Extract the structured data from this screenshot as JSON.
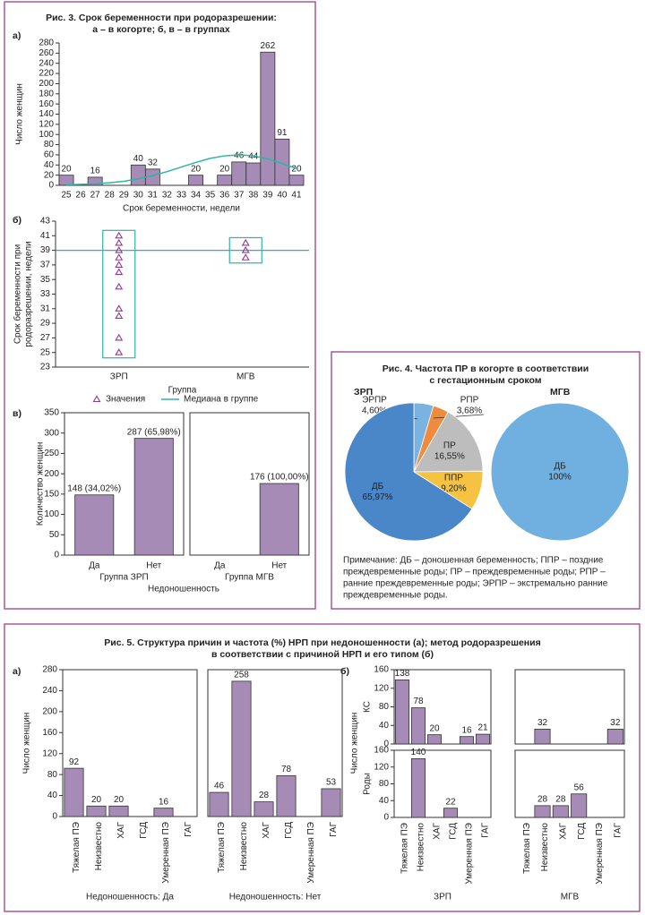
{
  "figures": [
    {
      "title": [
        "Рис. 3. Срок беременности при родоразрешении:",
        "а – в когорте; б, в – в группах"
      ],
      "panels": [
        "а)",
        "б)",
        "в)"
      ],
      "xlabel": "Недоношенность"
    },
    {
      "title": [
        "Рис. 4. Частота ПР в когорте в соответствии",
        "с гестационным сроком"
      ],
      "note": [
        "Примечание: ДБ – доношенная беременность; ППР – поздние",
        "преждевременные роды; ПР – преждевременные роды; РПР –",
        "ранние преждевременные роды; ЭРПР – экстремально ранние",
        "преждевременные роды."
      ]
    },
    {
      "title": [
        "Рис. 5. Структура причин и частота (%) НРП при недоношенности (а); метод родоразрешения",
        "в соответствии с причиной НРП и его типом (б)"
      ],
      "panels": [
        "а)",
        "б)"
      ],
      "ylabel": "Число женщин"
    }
  ],
  "chart_data": [
    {
      "type": "bar",
      "categories": [
        "25",
        "26",
        "27",
        "28",
        "29",
        "30",
        "31",
        "32",
        "33",
        "34",
        "35",
        "36",
        "37",
        "38",
        "39",
        "40",
        "41"
      ],
      "values": [
        20,
        0,
        16,
        0,
        0,
        40,
        32,
        0,
        0,
        20,
        0,
        20,
        46,
        44,
        262,
        91,
        20
      ],
      "color": "#a58bb5",
      "fit": {
        "color": "#2bb5a8",
        "values": [
          1,
          2,
          3,
          5,
          8,
          13,
          19,
          27,
          36,
          45,
          53,
          58,
          60,
          58,
          52,
          43,
          33
        ]
      },
      "ylim": [
        0,
        280
      ],
      "yticks": [
        0,
        20,
        40,
        60,
        80,
        100,
        120,
        140,
        160,
        180,
        200,
        220,
        240,
        260,
        280
      ],
      "ylabel": "Число женщин",
      "xlabel": "Срок беременности, недели"
    },
    {
      "type": "scatter",
      "categories": [
        "ЗРП",
        "МГВ"
      ],
      "series": [
        {
          "name": "Значения",
          "color": "#8e3a8e",
          "values": [
            [
              41,
              40,
              39,
              38,
              37,
              36,
              34,
              31,
              30,
              27,
              25
            ],
            [
              40,
              39,
              38
            ]
          ]
        }
      ],
      "median": {
        "name": "Медиана в группе",
        "color": "#2bb5a8",
        "value": 39
      },
      "ylim": [
        23,
        43
      ],
      "yticks": [
        23,
        25,
        27,
        29,
        31,
        33,
        35,
        37,
        39,
        41,
        43
      ],
      "ylabel": [
        "Срок беременности при",
        "родоразрешении, недели"
      ],
      "xlabel": "Группа"
    },
    {
      "type": "bar",
      "categories": [
        "Да",
        "Нет"
      ],
      "values": [
        148,
        287
      ],
      "value_labels": [
        "148 (34,02%)",
        "287 (65,98%)"
      ],
      "color": "#a58bb5",
      "ylim": [
        0,
        350
      ],
      "yticks": [
        0,
        50,
        100,
        150,
        200,
        250,
        300,
        350
      ],
      "ylabel": "Количество женщин",
      "xlabel": "Группа ЗРП"
    },
    {
      "type": "bar",
      "categories": [
        "Да",
        "Нет"
      ],
      "values": [
        0,
        176
      ],
      "value_labels": [
        null,
        "176 (100,00%)"
      ],
      "color": "#a58bb5",
      "ylim": [
        0,
        350
      ],
      "xlabel": "Группа МГВ"
    },
    {
      "type": "pie",
      "title": "ЗРП",
      "categories": [
        "ЭРПР",
        "РПР",
        "ПР",
        "ППР",
        "ДБ"
      ],
      "values": [
        4.6,
        3.68,
        16.55,
        9.2,
        65.97
      ],
      "value_labels": [
        "4,60%",
        "3,68%",
        "16,55%",
        "9,20%",
        "65,97%"
      ],
      "colors": [
        "#7ab3e0",
        "#f08a3c",
        "#bdbdbd",
        "#f5c242",
        "#4a87c8"
      ]
    },
    {
      "type": "pie",
      "title": "МГВ",
      "categories": [
        "ДБ"
      ],
      "values": [
        100
      ],
      "value_labels": [
        "100%"
      ],
      "colors": [
        "#6fb0e0"
      ]
    },
    {
      "type": "bar",
      "categories": [
        "Тяжелая ПЭ",
        "Неизвестно",
        "ХАГ",
        "ГСД",
        "Умеренная ПЭ",
        "ГАГ"
      ],
      "values": [
        92,
        20,
        20,
        0,
        16,
        0
      ],
      "color": "#a58bb5",
      "ylim": [
        0,
        280
      ],
      "yticks": [
        0,
        40,
        80,
        120,
        160,
        200,
        240,
        280
      ],
      "ylabel": "Число женщин",
      "xlabel": "Недоношенность: Да"
    },
    {
      "type": "bar",
      "categories": [
        "Тяжелая ПЭ",
        "Неизвестно",
        "ХАГ",
        "ГСД",
        "Умеренная ПЭ",
        "ГАГ"
      ],
      "values": [
        46,
        258,
        28,
        78,
        0,
        53
      ],
      "color": "#a58bb5",
      "ylim": [
        0,
        280
      ],
      "xlabel": "Недоношенность: Нет"
    },
    {
      "type": "bar",
      "values": [
        138,
        78,
        20,
        0,
        16,
        21
      ],
      "color": "#a58bb5",
      "ylim": [
        0,
        160
      ],
      "yticks": [
        0,
        40,
        80,
        120,
        160
      ],
      "ylabel": "КС"
    },
    {
      "type": "bar",
      "values": [
        0,
        32,
        0,
        0,
        0,
        32
      ],
      "color": "#a58bb5",
      "ylim": [
        0,
        160
      ]
    },
    {
      "type": "bar",
      "categories": [
        "Тяжелая ПЭ",
        "Неизвестно",
        "ХАГ",
        "ГСД",
        "Умеренная ПЭ",
        "ГАГ"
      ],
      "values": [
        0,
        140,
        0,
        22,
        0,
        0
      ],
      "color": "#a58bb5",
      "ylim": [
        0,
        160
      ],
      "yticks": [
        0,
        40,
        80,
        120,
        160
      ],
      "ylabel": "Роды",
      "xlabel": "ЗРП"
    },
    {
      "type": "bar",
      "categories": [
        "Тяжелая ПЭ",
        "Неизвестно",
        "ХАГ",
        "ГСД",
        "Умеренная ПЭ",
        "ГАГ"
      ],
      "values": [
        0,
        28,
        28,
        56,
        0,
        0
      ],
      "color": "#a58bb5",
      "ylim": [
        0,
        160
      ],
      "xlabel": "МГВ"
    }
  ]
}
